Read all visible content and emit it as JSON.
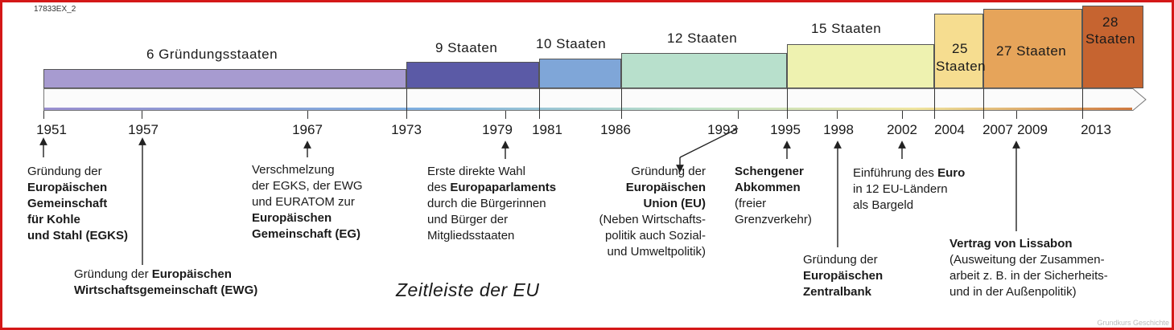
{
  "image_code": "17833EX_2",
  "title": "Zeitleiste der EU",
  "watermark": "Grundkurs Geschichte",
  "bands": [
    {
      "label": "6 Gründungsstaaten",
      "color": "#a79bd0"
    },
    {
      "label": "9 Staaten",
      "color": "#5b5aa6"
    },
    {
      "label": "10 Staaten",
      "color": "#7fa6d8"
    },
    {
      "label": "12 Staaten",
      "color": "#b8e0cc"
    },
    {
      "label": "15 Staaten",
      "color": "#eef2b0"
    },
    {
      "label": "25 Staaten",
      "color": "#f6dd90"
    },
    {
      "label": "27 Staaten",
      "color": "#e6a45a"
    },
    {
      "label": "28 Staaten",
      "color": "#c66430"
    }
  ],
  "years": [
    "1951",
    "1957",
    "1967",
    "1973",
    "1979",
    "1981",
    "1986",
    "1993",
    "1995",
    "1998",
    "2002",
    "2004",
    "2007",
    "2009",
    "2013"
  ],
  "events": {
    "e1951": {
      "l1": "Gründung der",
      "b1": "Europäischen",
      "b2": "Gemeinschaft",
      "b3": "für Kohle",
      "b4": "und Stahl (EGKS)"
    },
    "e1957": {
      "pre": "Gründung der ",
      "b1": "Europäischen",
      "b2": "Wirtschaftsgemeinschaft (EWG)"
    },
    "e1967": {
      "l1": "Verschmelzung",
      "l2": "der EGKS, der EWG",
      "l3": "und EURATOM zur",
      "b1": "Europäischen",
      "b2": "Gemeinschaft (EG)"
    },
    "e1979": {
      "l1": "Erste direkte Wahl",
      "pre": "des ",
      "b1": "Europaparlaments",
      "l3": "durch die Bürgerinnen",
      "l4": "und Bürger der",
      "l5": "Mitgliedsstaaten"
    },
    "e1993": {
      "l1": "Gründung der",
      "b1": "Europäischen",
      "b2": "Union (EU)",
      "l4": "(Neben Wirtschafts-",
      "l5": "politik auch Sozial-",
      "l6": "und Umweltpolitik)"
    },
    "e1995": {
      "b1": "Schengener",
      "b2": "Abkommen",
      "l3": "(freier",
      "l4": "Grenzverkehr)"
    },
    "e1998": {
      "l1": "Gründung der",
      "b1": "Europäischen",
      "b2": "Zentralbank"
    },
    "e2002": {
      "pre": "Einführung des ",
      "b1": "Euro",
      "l2": "in 12 EU-Ländern",
      "l3": "als Bargeld"
    },
    "e2009": {
      "b1": "Vertrag von Lissabon",
      "l2": "(Ausweitung der Zusammen-",
      "l3": "arbeit z. B. in der Sicherheits-",
      "l4": "und in der Außenpolitik)"
    }
  }
}
